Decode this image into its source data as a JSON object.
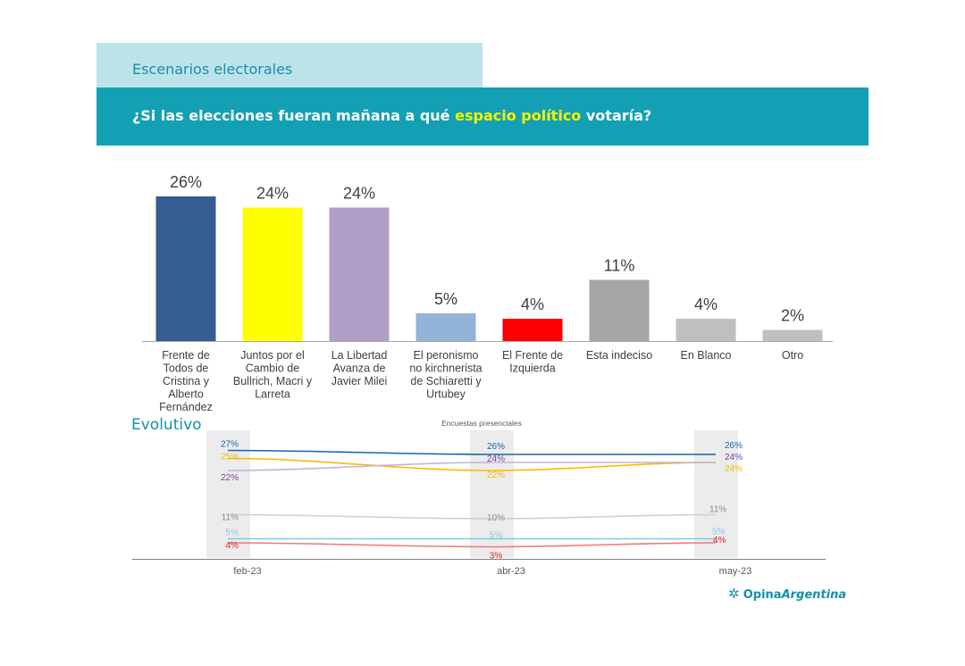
{
  "header": {
    "section_label": "Escenarios electorales",
    "question_before": "¿Si las elecciones fueran mañana a qué ",
    "question_highlight": "espacio político",
    "question_after": " votaría?"
  },
  "chart_data": [
    {
      "type": "bar",
      "categories": [
        [
          "Frente de",
          "Todos de",
          "Cristina y",
          "Alberto",
          "Fernández"
        ],
        [
          "Juntos por el",
          "Cambio de",
          "Bullrich, Macri y",
          "Larreta"
        ],
        [
          "La Libertad",
          "Avanza de",
          "Javier Milei"
        ],
        [
          "El peronismo",
          "no kirchnerista",
          "de Schiaretti y",
          "Urtubey"
        ],
        [
          "El Frente de",
          "Izquierda"
        ],
        [
          "Esta indeciso"
        ],
        [
          "En Blanco"
        ],
        [
          "Otro"
        ]
      ],
      "values": [
        26,
        24,
        24,
        5,
        4,
        11,
        4,
        2
      ],
      "labels": [
        "26%",
        "24%",
        "24%",
        "5%",
        "4%",
        "11%",
        "4%",
        "2%"
      ],
      "colors": [
        "#355d92",
        "#ffff00",
        "#b19fc7",
        "#93b3d9",
        "#ff0000",
        "#a6a6a6",
        "#bfbfbf",
        "#bfbfbf"
      ],
      "ylim": [
        0,
        26
      ]
    },
    {
      "type": "line",
      "title": "Evolutivo",
      "subtitle": "Encuestas presenciales",
      "x": [
        "feb-23",
        "abr-23",
        "may-23"
      ],
      "ylim": [
        0,
        30
      ],
      "series": [
        {
          "color": "#1565b0",
          "values": [
            27,
            26,
            26
          ],
          "labels": [
            "27%",
            "26%",
            "26%"
          ]
        },
        {
          "color": "#f5bd00",
          "values": [
            25,
            22,
            24
          ],
          "labels": [
            "25%",
            "22%",
            "24%"
          ]
        },
        {
          "color": "#c4b3d8",
          "label_color": "#7a3d96",
          "values": [
            22,
            24,
            24
          ],
          "labels": [
            "22%",
            "24%",
            "24%"
          ]
        },
        {
          "color": "#d0d0d0",
          "label_color": "#8c8c8c",
          "values": [
            11,
            10,
            11
          ],
          "labels": [
            "11%",
            "10%",
            "11%"
          ]
        },
        {
          "color": "#7ccbe0",
          "label_color": "#8fc4e0",
          "values": [
            5,
            5,
            5
          ],
          "labels": [
            "5%",
            "5%",
            "5%"
          ]
        },
        {
          "color": "#f07a7a",
          "label_color": "#ee1c1c",
          "values": [
            4,
            3,
            4
          ],
          "labels": [
            "4%",
            "3%",
            "4%"
          ]
        }
      ]
    }
  ],
  "brand": {
    "name_bold": "Opina",
    "name_italic": "Argentina"
  }
}
